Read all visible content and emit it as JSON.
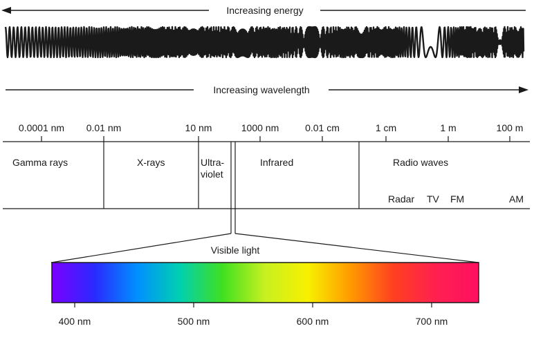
{
  "arrows": {
    "energy_label": "Increasing energy",
    "wavelength_label": "Increasing wavelength"
  },
  "scale_ticks": [
    "0.0001 nm",
    "0.01 nm",
    "10 nm",
    "1000 nm",
    "0.01 cm",
    "1 cm",
    "1 m",
    "100 m"
  ],
  "regions": {
    "gamma": "Gamma rays",
    "xrays": "X-rays",
    "uv_line1": "Ultra-",
    "uv_line2": "violet",
    "infrared": "Infrared",
    "radio": "Radio waves"
  },
  "radio_bands": [
    "Radar",
    "TV",
    "FM",
    "AM"
  ],
  "visible": {
    "title": "Visible light",
    "ticks": [
      "400 nm",
      "500 nm",
      "600 nm",
      "700 nm"
    ],
    "spectrum_colors": [
      "#7a00ff",
      "#2a2aff",
      "#0090ff",
      "#00d0b0",
      "#40e020",
      "#c8f020",
      "#f8f000",
      "#ff9a00",
      "#ff4020",
      "#ff2050",
      "#ff1060"
    ]
  },
  "colors": {
    "stroke": "#1a1a1a",
    "background": "#ffffff"
  }
}
